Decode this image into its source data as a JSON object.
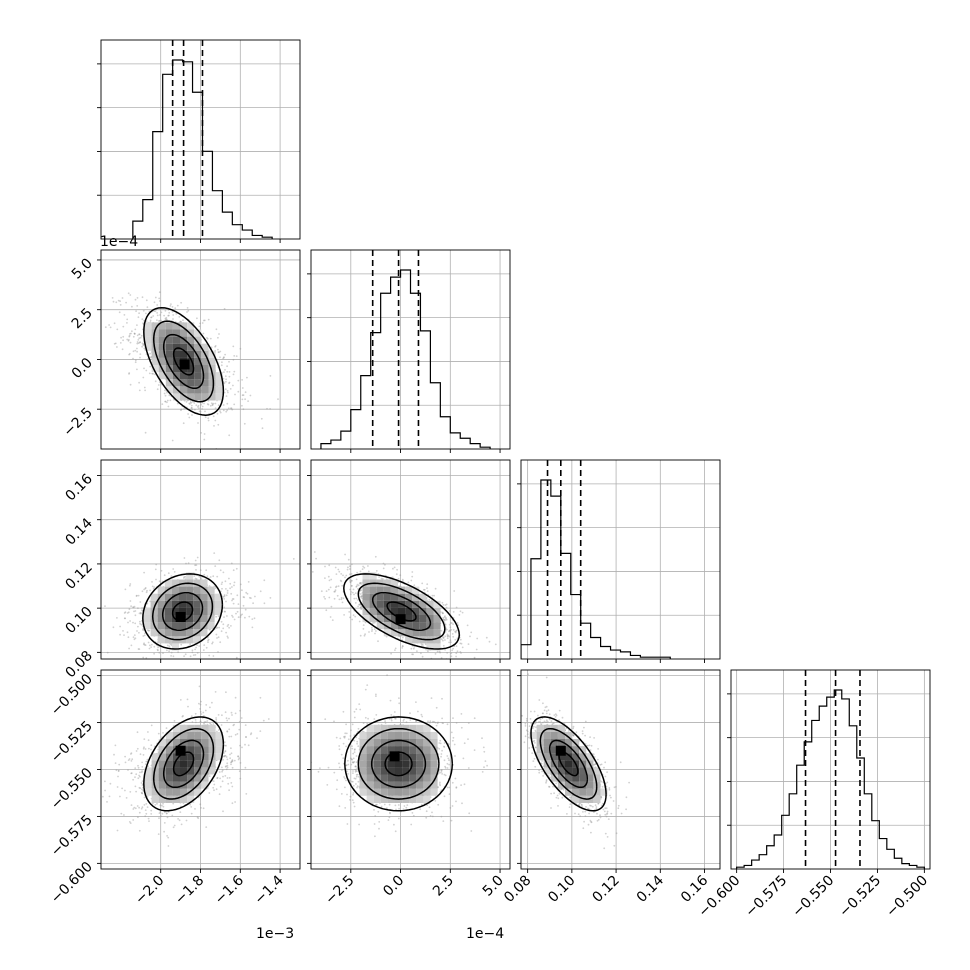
{
  "chart_data": {
    "type": "corner",
    "parameters": [
      {
        "name": "",
        "range": [
          -2.3,
          -1.3
        ],
        "ticks": [
          -2.0,
          -1.8,
          -1.6,
          -1.4
        ],
        "tick_labels": [
          "−2.0",
          "−1.8",
          "−1.6",
          "−1.4"
        ],
        "offset_text": "1e−3",
        "quantiles": [
          -1.94,
          -1.885,
          -1.79
        ],
        "histogram": {
          "bin_edges": [
            -2.14,
            -2.09,
            -2.04,
            -1.99,
            -1.94,
            -1.89,
            -1.84,
            -1.79,
            -1.74,
            -1.69,
            -1.64,
            -1.59,
            -1.54,
            -1.49,
            -1.44
          ],
          "counts": [
            0.1,
            0.22,
            0.6,
            0.92,
            1.0,
            0.99,
            0.82,
            0.49,
            0.27,
            0.15,
            0.08,
            0.05,
            0.02,
            0.01
          ]
        }
      },
      {
        "name": "",
        "range": [
          -4.5,
          5.5
        ],
        "ticks": [
          -2.5,
          0.0,
          2.5,
          5.0
        ],
        "tick_labels": [
          "−2.5",
          "0.0",
          "2.5",
          "5.0"
        ],
        "offset_text": "1e−4",
        "quantiles": [
          -1.4,
          -0.1,
          0.9
        ],
        "histogram": {
          "bin_edges": [
            -4.0,
            -3.5,
            -3.0,
            -2.5,
            -2.0,
            -1.5,
            -1.0,
            -0.5,
            0.0,
            0.5,
            1.0,
            1.5,
            2.0,
            2.5,
            3.0,
            3.5,
            4.0,
            4.5
          ],
          "counts": [
            0.03,
            0.05,
            0.1,
            0.22,
            0.41,
            0.65,
            0.87,
            0.96,
            1.0,
            0.87,
            0.66,
            0.37,
            0.18,
            0.09,
            0.06,
            0.03,
            0.01
          ]
        }
      },
      {
        "name": "",
        "range": [
          0.077,
          0.167
        ],
        "ticks": [
          0.08,
          0.1,
          0.12,
          0.14,
          0.16
        ],
        "tick_labels": [
          "0.08",
          "0.10",
          "0.12",
          "0.14",
          "0.16"
        ],
        "offset_text": "",
        "quantiles": [
          0.089,
          0.095,
          0.104
        ],
        "histogram": {
          "bin_edges": [
            0.077,
            0.0815,
            0.086,
            0.0905,
            0.095,
            0.0995,
            0.104,
            0.1085,
            0.113,
            0.1175,
            0.122,
            0.1265,
            0.131,
            0.1355,
            0.14,
            0.1445
          ],
          "counts": [
            0.08,
            0.56,
            1.0,
            0.91,
            0.59,
            0.36,
            0.2,
            0.12,
            0.07,
            0.05,
            0.04,
            0.02,
            0.01,
            0.01,
            0.01
          ]
        }
      },
      {
        "name": "",
        "range": [
          -0.603,
          -0.497
        ],
        "ticks": [
          -0.6,
          -0.575,
          -0.55,
          -0.525,
          -0.5
        ],
        "tick_labels": [
          "−0.600",
          "−0.575",
          "−0.550",
          "−0.525",
          "−0.500"
        ],
        "offset_text": "",
        "quantiles": [
          -0.5633,
          -0.5473,
          -0.5343
        ],
        "histogram": {
          "bin_edges": [
            -0.6,
            -0.596,
            -0.592,
            -0.588,
            -0.584,
            -0.58,
            -0.576,
            -0.572,
            -0.568,
            -0.564,
            -0.56,
            -0.556,
            -0.552,
            -0.548,
            -0.544,
            -0.54,
            -0.536,
            -0.532,
            -0.528,
            -0.524,
            -0.52,
            -0.516,
            -0.512,
            -0.508,
            -0.504,
            -0.5
          ],
          "counts": [
            0.01,
            0.02,
            0.05,
            0.08,
            0.13,
            0.19,
            0.3,
            0.42,
            0.58,
            0.71,
            0.83,
            0.91,
            0.96,
            1.0,
            0.95,
            0.8,
            0.62,
            0.42,
            0.27,
            0.17,
            0.11,
            0.06,
            0.03,
            0.02,
            0.01
          ]
        }
      }
    ],
    "pairs": [
      {
        "x_param": 0,
        "y_param": 1,
        "center": [
          -1.885,
          -0.1
        ],
        "axis_sigma": [
          0.1,
          1.35
        ],
        "rho": -0.55,
        "peak": [
          -1.88,
          -0.25
        ]
      },
      {
        "x_param": 0,
        "y_param": 2,
        "center": [
          -1.89,
          0.0985
        ],
        "axis_sigma": [
          0.1,
          0.0085
        ],
        "rho": 0.18,
        "peak": [
          -1.9,
          0.096
        ]
      },
      {
        "x_param": 1,
        "y_param": 2,
        "center": [
          0.05,
          0.0985
        ],
        "axis_sigma": [
          1.45,
          0.0085
        ],
        "rho": -0.62,
        "peak": [
          0.0,
          0.095
        ]
      },
      {
        "x_param": 0,
        "y_param": 3,
        "center": [
          -1.885,
          -0.547
        ],
        "axis_sigma": [
          0.1,
          0.0125
        ],
        "rho": 0.42,
        "peak": [
          -1.9,
          -0.54
        ]
      },
      {
        "x_param": 1,
        "y_param": 3,
        "center": [
          -0.1,
          -0.547
        ],
        "axis_sigma": [
          1.35,
          0.0125
        ],
        "rho": 0.0,
        "peak": [
          -0.3,
          -0.543
        ]
      },
      {
        "x_param": 2,
        "y_param": 3,
        "center": [
          0.0985,
          -0.547
        ],
        "axis_sigma": [
          0.0085,
          0.0125
        ],
        "rho": -0.65,
        "peak": [
          0.095,
          -0.54
        ]
      }
    ],
    "contour_levels": [
      0.5,
      1.0,
      1.5,
      2.0
    ],
    "grid": true,
    "colors": {
      "line": "#000000",
      "grid": "#b0b0b0",
      "sample": "#9a9a9a",
      "background": "#ffffff"
    }
  }
}
